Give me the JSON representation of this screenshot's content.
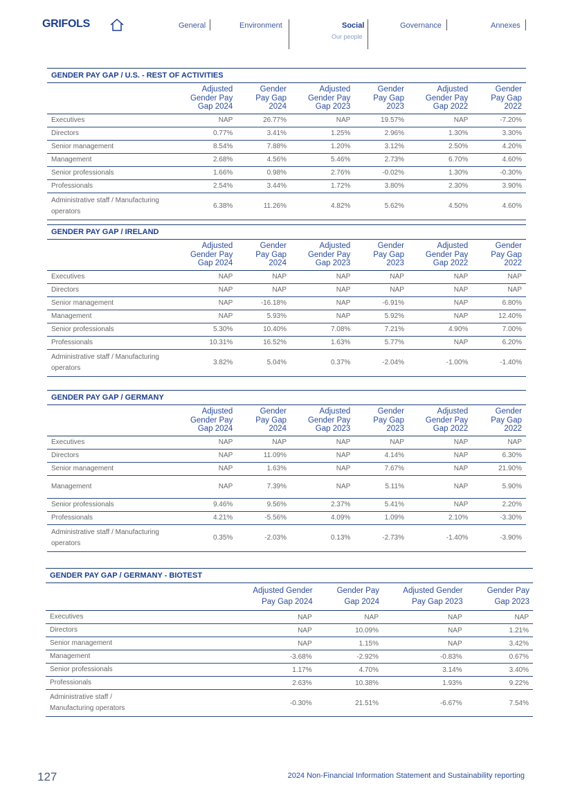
{
  "header": {
    "logo": "GRIFOLS",
    "nav": [
      {
        "label": "General"
      },
      {
        "label": "Environment"
      },
      {
        "label": "Social",
        "sub": "Our people",
        "selected": true
      },
      {
        "label": "Governance"
      },
      {
        "label": "Annexes"
      }
    ]
  },
  "tables": [
    {
      "title": "GENDER PAY GAP / U.S.  - REST OF ACTIVITIES",
      "columns": [
        "Adjusted Gender Pay Gap 2024",
        "Gender Pay Gap 2024",
        "Adjusted Gender Pay Gap 2023",
        "Gender Pay Gap 2023",
        "Adjusted Gender Pay Gap 2022",
        "Gender Pay Gap 2022"
      ],
      "rows": [
        {
          "label": "Executives",
          "values": [
            "NAP",
            "26.77%",
            "NAP",
            "19.57%",
            "NAP",
            "-7.20%"
          ]
        },
        {
          "label": "Directors",
          "values": [
            "0.77%",
            "3.41%",
            "1.25%",
            "2.96%",
            "1.30%",
            "3.30%"
          ]
        },
        {
          "label": "Senior management",
          "values": [
            "8.54%",
            "7.88%",
            "1.20%",
            "3.12%",
            "2.50%",
            "4.20%"
          ]
        },
        {
          "label": "Management",
          "values": [
            "2.68%",
            "4.56%",
            "5.46%",
            "2.73%",
            "6.70%",
            "4.60%"
          ]
        },
        {
          "label": "Senior professionals",
          "values": [
            "1.66%",
            "0.98%",
            "2.76%",
            "-0.02%",
            "1.30%",
            "-0.30%"
          ]
        },
        {
          "label": "Professionals",
          "values": [
            "2.54%",
            "3.44%",
            "1.72%",
            "3.80%",
            "2.30%",
            "3.90%"
          ]
        },
        {
          "label": "Administrative staff / Manufacturing operators",
          "values": [
            "6.38%",
            "11.26%",
            "4.82%",
            "5.62%",
            "4.50%",
            "4.60%"
          ]
        }
      ]
    },
    {
      "title": "GENDER PAY GAP / IRELAND",
      "columns": [
        "Adjusted Gender Pay Gap 2024",
        "Gender Pay Gap 2024",
        "Adjusted Gender Pay Gap 2023",
        "Gender Pay Gap 2023",
        "Adjusted Gender Pay Gap 2022",
        "Gender Pay Gap 2022"
      ],
      "rows": [
        {
          "label": "Executives",
          "values": [
            "NAP",
            "NAP",
            "NAP",
            "NAP",
            "NAP",
            "NAP"
          ]
        },
        {
          "label": "Directors",
          "values": [
            "NAP",
            "NAP",
            "NAP",
            "NAP",
            "NAP",
            "NAP"
          ]
        },
        {
          "label": "Senior management",
          "values": [
            "NAP",
            "-16.18%",
            "NAP",
            "-6.91%",
            "NAP",
            "6.80%"
          ]
        },
        {
          "label": "Management",
          "values": [
            "NAP",
            "5.93%",
            "NAP",
            "5.92%",
            "NAP",
            "12.40%"
          ]
        },
        {
          "label": "Senior professionals",
          "values": [
            "5.30%",
            "10.40%",
            "7.08%",
            "7.21%",
            "4.90%",
            "7.00%"
          ]
        },
        {
          "label": "Professionals",
          "values": [
            "10.31%",
            "16.52%",
            "1.63%",
            "5.77%",
            "NAP",
            "6.20%"
          ]
        },
        {
          "label": "Administrative staff / Manufacturing operators",
          "values": [
            "3.82%",
            "5.04%",
            "0.37%",
            "-2.04%",
            "-1.00%",
            "-1.40%"
          ]
        }
      ]
    },
    {
      "title": "GENDER PAY GAP / GERMANY",
      "columns": [
        "Adjusted Gender Pay Gap 2024",
        "Gender Pay Gap 2024",
        "Adjusted Gender Pay Gap 2023",
        "Gender Pay Gap 2023",
        "Adjusted Gender Pay Gap 2022",
        "Gender Pay Gap 2022"
      ],
      "rows": [
        {
          "label": "Executives",
          "values": [
            "NAP",
            "NAP",
            "NAP",
            "NAP",
            "NAP",
            "NAP"
          ]
        },
        {
          "label": "Directors",
          "values": [
            "NAP",
            "11.09%",
            "NAP",
            "4.14%",
            "NAP",
            "6.30%"
          ]
        },
        {
          "label": "Senior management",
          "values": [
            "NAP",
            "1.63%",
            "NAP",
            "7.67%",
            "NAP",
            "21.90%"
          ]
        },
        {
          "label": "Management",
          "values": [
            "NAP",
            "7.39%",
            "NAP",
            "5.11%",
            "NAP",
            "5.90%"
          ]
        },
        {
          "label": "Senior professionals",
          "values": [
            "9.46%",
            "9.56%",
            "2.37%",
            "5.41%",
            "NAP",
            "2.20%"
          ]
        },
        {
          "label": "Professionals",
          "values": [
            "4.21%",
            "-5.56%",
            "4.09%",
            "1.09%",
            "2.10%",
            "-3.30%"
          ]
        },
        {
          "label": "Administrative staff / Manufacturing operators",
          "values": [
            "0.35%",
            "-2.03%",
            "0.13%",
            "-2.73%",
            "-1.40%",
            "-3.90%"
          ]
        }
      ]
    },
    {
      "title": "GENDER PAY GAP / GERMANY - BIOTEST",
      "columns": [
        "Adjusted Gender Pay Gap 2024",
        "Gender Pay Gap 2024",
        "Adjusted Gender Pay Gap 2023",
        "Gender Pay Gap 2023"
      ],
      "rows": [
        {
          "label": "Executives",
          "values": [
            "NAP",
            "NAP",
            "NAP",
            "NAP"
          ]
        },
        {
          "label": "Directors",
          "values": [
            "NAP",
            "10.09%",
            "NAP",
            "1.21%"
          ]
        },
        {
          "label": "Senior management",
          "values": [
            "NAP",
            "1.15%",
            "NAP",
            "3.42%"
          ]
        },
        {
          "label": "Management",
          "values": [
            "-3.68%",
            "-2.92%",
            "-0.83%",
            "0.67%"
          ]
        },
        {
          "label": "Senior professionals",
          "values": [
            "1.17%",
            "4.70%",
            "3.14%",
            "3.40%"
          ]
        },
        {
          "label": "Professionals",
          "values": [
            "2.63%",
            "10.38%",
            "1.93%",
            "9.22%"
          ]
        },
        {
          "label": "Administrative staff / Manufacturing operators",
          "values": [
            "-0.30%",
            "21.51%",
            "-6.67%",
            "7.54%"
          ]
        }
      ]
    }
  ],
  "footer": {
    "page_number": "127",
    "title": "2024 Non-Financial Information Statement and Sustainability reporting"
  }
}
